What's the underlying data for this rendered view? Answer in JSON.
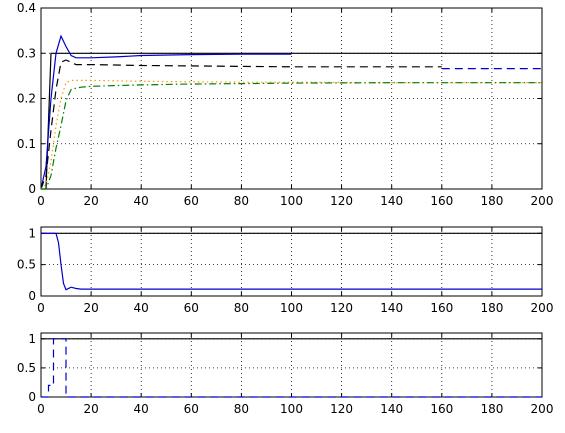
{
  "chart_data": [
    {
      "type": "line",
      "title": "",
      "xlabel": "",
      "ylabel": "",
      "xlim": [
        0,
        200
      ],
      "ylim": [
        0,
        0.4
      ],
      "grid": true,
      "x_ticks": [
        0,
        20,
        40,
        60,
        80,
        100,
        120,
        140,
        160,
        180,
        200
      ],
      "x_tick_labels": [
        "0",
        "20",
        "40",
        "60",
        "80",
        "100",
        "120",
        "140",
        "160",
        "180",
        "200"
      ],
      "y_ticks": [
        0,
        0.1,
        0.2,
        0.3,
        0.4
      ],
      "y_tick_labels": [
        "0",
        "0.1",
        "0.2",
        "0.3",
        "0.4"
      ],
      "series": [
        {
          "color": "#000000",
          "style": "solid",
          "x": [
            0,
            2,
            4,
            8,
            12,
            16,
            20,
            200
          ],
          "y": [
            0,
            0,
            0.3,
            0.3,
            0.3,
            0.3,
            0.3,
            0.3
          ]
        },
        {
          "color": "#0000cc",
          "style": "solid",
          "x": [
            0,
            2,
            4,
            6,
            8,
            10,
            12,
            14,
            16,
            18,
            20,
            30,
            40,
            60,
            80,
            100
          ],
          "y": [
            0,
            0.05,
            0.2,
            0.3,
            0.338,
            0.315,
            0.295,
            0.29,
            0.29,
            0.29,
            0.29,
            0.292,
            0.295,
            0.297,
            0.298,
            0.298
          ]
        },
        {
          "color": "#000000",
          "style": "dashed",
          "x": [
            0,
            2,
            4,
            6,
            8,
            10,
            12,
            14,
            16,
            20,
            30,
            40,
            60,
            80,
            100,
            120,
            140,
            160
          ],
          "y": [
            0,
            0.03,
            0.13,
            0.22,
            0.28,
            0.285,
            0.28,
            0.275,
            0.275,
            0.275,
            0.274,
            0.273,
            0.272,
            0.271,
            0.27,
            0.27,
            0.27,
            0.27
          ]
        },
        {
          "color": "#0000cc",
          "style": "dashed",
          "x": [
            160,
            200
          ],
          "y": [
            0.266,
            0.266
          ]
        },
        {
          "color": "#ff9900",
          "style": "dotted",
          "x": [
            0,
            2,
            4,
            6,
            8,
            10,
            12,
            14,
            16,
            20,
            40,
            60,
            80,
            100,
            140,
            200
          ],
          "y": [
            0,
            0.01,
            0.06,
            0.14,
            0.2,
            0.235,
            0.24,
            0.24,
            0.24,
            0.24,
            0.238,
            0.237,
            0.236,
            0.236,
            0.235,
            0.235
          ]
        },
        {
          "color": "#008000",
          "style": "dashdot",
          "x": [
            0,
            2,
            4,
            6,
            8,
            10,
            12,
            14,
            16,
            20,
            40,
            60,
            80,
            100,
            140,
            200
          ],
          "y": [
            0,
            0,
            0.03,
            0.09,
            0.14,
            0.195,
            0.22,
            0.223,
            0.225,
            0.227,
            0.23,
            0.232,
            0.233,
            0.234,
            0.235,
            0.235
          ]
        }
      ]
    },
    {
      "type": "line",
      "title": "",
      "xlabel": "",
      "ylabel": "",
      "xlim": [
        0,
        200
      ],
      "ylim": [
        0,
        1.1
      ],
      "grid": true,
      "x_ticks": [
        0,
        20,
        40,
        60,
        80,
        100,
        120,
        140,
        160,
        180,
        200
      ],
      "x_tick_labels": [
        "0",
        "20",
        "40",
        "60",
        "80",
        "100",
        "120",
        "140",
        "160",
        "180",
        "200"
      ],
      "y_ticks": [
        0,
        0.5,
        1
      ],
      "y_tick_labels": [
        "0",
        "0.5",
        "1"
      ],
      "series": [
        {
          "color": "#000000",
          "style": "solid",
          "x": [
            0,
            6,
            7,
            8,
            9,
            10,
            20,
            200
          ],
          "y": [
            1,
            1,
            1,
            1,
            1,
            1,
            1,
            1
          ]
        },
        {
          "color": "#0000cc",
          "style": "solid",
          "x": [
            0,
            6,
            7,
            8,
            9,
            10,
            12,
            14,
            16,
            20,
            40,
            60,
            100,
            200
          ],
          "y": [
            1,
            1,
            0.85,
            0.5,
            0.2,
            0.1,
            0.14,
            0.12,
            0.11,
            0.11,
            0.11,
            0.11,
            0.11,
            0.11
          ]
        }
      ]
    },
    {
      "type": "line",
      "title": "",
      "xlabel": "",
      "ylabel": "",
      "xlim": [
        0,
        200
      ],
      "ylim": [
        0,
        1.1
      ],
      "grid": true,
      "x_ticks": [
        0,
        20,
        40,
        60,
        80,
        100,
        120,
        140,
        160,
        180,
        200
      ],
      "x_tick_labels": [
        "0",
        "20",
        "40",
        "60",
        "80",
        "100",
        "120",
        "140",
        "160",
        "180",
        "200"
      ],
      "y_ticks": [
        0,
        0.5,
        1
      ],
      "y_tick_labels": [
        "0",
        "0.5",
        "1"
      ],
      "series": [
        {
          "color": "#000000",
          "style": "solid",
          "x": [
            0,
            200
          ],
          "y": [
            1,
            1
          ]
        },
        {
          "color": "#0000cc",
          "style": "dashed",
          "x": [
            0,
            3,
            3,
            5,
            5,
            10,
            10,
            200
          ],
          "y": [
            0,
            0,
            0.2,
            0.2,
            1,
            1,
            0,
            0
          ]
        }
      ]
    }
  ]
}
